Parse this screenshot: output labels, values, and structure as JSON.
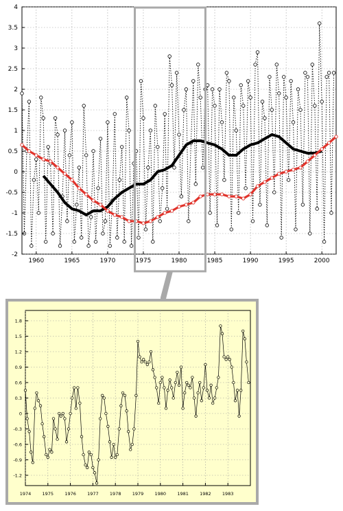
{
  "chart_data": [
    {
      "type": "line",
      "title": "",
      "xlabel": "",
      "ylabel": "",
      "xlim": [
        1958,
        2002
      ],
      "ylim": [
        -2,
        4
      ],
      "grid": true,
      "x_ticks": [
        "1960",
        "1965",
        "1970",
        "1975",
        "1980",
        "1985",
        "1990",
        "1995",
        "2000"
      ],
      "y_ticks": [
        "-2",
        "-1.5",
        "-1",
        "-0.5",
        "0",
        "0.5",
        "1",
        "1.5",
        "2",
        "2.5",
        "3",
        "3.5",
        "4"
      ],
      "series": [
        {
          "style": "dotted line with open circle markers",
          "color": "#000000",
          "x": [
            1958.0,
            1958.33,
            1958.67,
            1959.0,
            1959.33,
            1959.67,
            1960.0,
            1960.33,
            1960.67,
            1961.0,
            1961.33,
            1961.67,
            1962.0,
            1962.33,
            1962.67,
            1963.0,
            1963.33,
            1963.67,
            1964.0,
            1964.33,
            1964.67,
            1965.0,
            1965.33,
            1965.67,
            1966.0,
            1966.33,
            1966.67,
            1967.0,
            1967.33,
            1967.67,
            1968.0,
            1968.33,
            1968.67,
            1969.0,
            1969.33,
            1969.67,
            1970.0,
            1970.33,
            1970.67,
            1971.0,
            1971.33,
            1971.67,
            1972.0,
            1972.33,
            1972.67,
            1973.0,
            1973.33,
            1973.67,
            1974.0,
            1974.33,
            1974.67,
            1975.0,
            1975.33,
            1975.67,
            1976.0,
            1976.33,
            1976.67,
            1977.0,
            1977.33,
            1977.67,
            1978.0,
            1978.33,
            1978.67,
            1979.0,
            1979.33,
            1979.67,
            1980.0,
            1980.33,
            1980.67,
            1981.0,
            1981.33,
            1981.67,
            1982.0,
            1982.33,
            1982.67,
            1983.0,
            1983.33,
            1983.67,
            1984.0,
            1984.33,
            1984.67,
            1985.0,
            1985.33,
            1985.67,
            1986.0,
            1986.33,
            1986.67,
            1987.0,
            1987.33,
            1987.67,
            1988.0,
            1988.33,
            1988.67,
            1989.0,
            1989.33,
            1989.67,
            1990.0,
            1990.33,
            1990.67,
            1991.0,
            1991.33,
            1991.67,
            1992.0,
            1992.33,
            1992.67,
            1993.0,
            1993.33,
            1993.67,
            1994.0,
            1994.33,
            1994.67,
            1995.0,
            1995.33,
            1995.67,
            1996.0,
            1996.33,
            1996.67,
            1997.0,
            1997.33,
            1997.67,
            1998.0,
            1998.33,
            1998.67,
            1999.0,
            1999.33,
            1999.67,
            2000.0,
            2000.33,
            2000.67,
            2001.0,
            2001.33,
            2001.67
          ],
          "y": [
            1.9,
            -1.5,
            0.5,
            1.7,
            -1.8,
            -0.2,
            0.3,
            -1.0,
            1.8,
            1.3,
            -1.7,
            0.6,
            0.2,
            -1.5,
            1.3,
            0.9,
            -1.8,
            -0.6,
            1.0,
            -1.2,
            0.4,
            1.2,
            -1.7,
            -0.8,
            0.1,
            -1.6,
            1.6,
            0.4,
            -1.8,
            -1.1,
            0.5,
            -1.7,
            -0.4,
            0.8,
            -1.5,
            -1.2,
            1.2,
            -1.8,
            -0.7,
            1.4,
            -1.6,
            -0.2,
            0.6,
            -1.7,
            1.8,
            1.0,
            -1.8,
            0.2,
            0.5,
            -1.6,
            2.2,
            1.3,
            -1.4,
            0.1,
            1.0,
            -1.7,
            1.6,
            0.6,
            -1.2,
            -0.4,
            1.4,
            -0.9,
            2.8,
            2.1,
            0.1,
            2.4,
            0.9,
            -0.6,
            1.5,
            2.0,
            -1.2,
            0.7,
            2.2,
            -0.3,
            2.6,
            1.8,
            0.1,
            2.0,
            2.1,
            -1.0,
            2.0,
            1.6,
            -1.3,
            2.0,
            1.2,
            -0.2,
            2.4,
            2.2,
            -1.4,
            1.8,
            1.0,
            -1.0,
            2.1,
            1.6,
            -0.4,
            2.2,
            1.8,
            -1.2,
            2.6,
            2.9,
            -0.8,
            1.7,
            1.3,
            -1.3,
            2.3,
            1.5,
            -0.5,
            2.6,
            1.9,
            -1.6,
            2.3,
            1.8,
            -0.2,
            2.2,
            1.2,
            -1.4,
            2.0,
            1.5,
            -0.8,
            2.4,
            2.3,
            -1.5,
            2.6,
            1.6,
            -0.9,
            3.6,
            1.7,
            -1.7,
            2.3,
            2.4,
            -1.0,
            2.4
          ]
        },
        {
          "style": "thick solid line",
          "color": "#000000",
          "x": [
            1961.0,
            1962.0,
            1963.0,
            1964.0,
            1965.0,
            1966.0,
            1967.0,
            1968.0,
            1969.0,
            1970.0,
            1971.0,
            1972.0,
            1973.0,
            1974.0,
            1975.0,
            1976.0,
            1977.0,
            1978.0,
            1979.0,
            1980.0,
            1981.0,
            1982.0,
            1983.0,
            1984.0,
            1985.0,
            1986.0,
            1987.0,
            1988.0,
            1989.0,
            1990.0,
            1991.0,
            1992.0,
            1993.0,
            1994.0,
            1995.0,
            1996.0,
            1997.0,
            1998.0,
            1999.0,
            2000.0
          ],
          "y": [
            -0.1,
            -0.3,
            -0.5,
            -0.75,
            -0.9,
            -0.95,
            -1.05,
            -0.95,
            -0.95,
            -0.85,
            -0.65,
            -0.5,
            -0.4,
            -0.3,
            -0.3,
            -0.2,
            0.0,
            0.05,
            0.15,
            0.4,
            0.65,
            0.75,
            0.75,
            0.7,
            0.65,
            0.55,
            0.4,
            0.4,
            0.55,
            0.65,
            0.7,
            0.8,
            0.9,
            0.85,
            0.7,
            0.55,
            0.5,
            0.45,
            0.45,
            0.5
          ]
        },
        {
          "style": "thick red line with open circle markers",
          "color": "#e0332b",
          "x": [
            1958.0,
            1959.0,
            1960.0,
            1961.0,
            1962.0,
            1963.0,
            1964.0,
            1965.0,
            1966.0,
            1967.0,
            1968.0,
            1969.0,
            1970.0,
            1971.0,
            1972.0,
            1973.0,
            1974.0,
            1975.0,
            1976.0,
            1977.0,
            1978.0,
            1979.0,
            1980.0,
            1981.0,
            1982.0,
            1983.0,
            1984.0,
            1985.0,
            1986.0,
            1987.0,
            1988.0,
            1989.0,
            1990.0,
            1991.0,
            1992.0,
            1993.0,
            1994.0,
            1995.0,
            1996.0,
            1997.0,
            1998.0,
            1999.0,
            2000.0,
            2001.0,
            2002.0
          ],
          "y": [
            0.65,
            0.5,
            0.4,
            0.3,
            0.25,
            0.1,
            -0.05,
            -0.2,
            -0.4,
            -0.55,
            -0.7,
            -0.8,
            -0.95,
            -1.05,
            -1.1,
            -1.2,
            -1.2,
            -1.25,
            -1.2,
            -1.1,
            -1.0,
            -0.95,
            -0.85,
            -0.8,
            -0.75,
            -0.6,
            -0.55,
            -0.55,
            -0.55,
            -0.6,
            -0.6,
            -0.65,
            -0.55,
            -0.35,
            -0.25,
            -0.15,
            -0.05,
            0.0,
            0.05,
            0.1,
            0.25,
            0.4,
            0.55,
            0.7,
            0.85
          ]
        }
      ],
      "zoom_window": [
        1974,
        1983.5
      ]
    },
    {
      "type": "line",
      "title": "",
      "xlabel": "",
      "ylabel": "",
      "xlim": [
        1974,
        1984
      ],
      "ylim": [
        -1.4,
        2.0
      ],
      "grid": true,
      "x_ticks": [
        "1974",
        "1975",
        "1976",
        "1977",
        "1978",
        "1979",
        "1980",
        "1981",
        "1982",
        "1983"
      ],
      "y_ticks": [
        "-1.2",
        "-0.9",
        "-0.6",
        "-0.3",
        "0",
        "0.3",
        "0.6",
        "0.9",
        "1.2",
        "1.5",
        "1.8"
      ],
      "series": [
        {
          "style": "thin solid line with open circle markers",
          "color": "#000000",
          "x": [
            1974.0,
            1974.08,
            1974.17,
            1974.25,
            1974.33,
            1974.42,
            1974.5,
            1974.58,
            1974.67,
            1974.75,
            1974.83,
            1974.92,
            1975.0,
            1975.08,
            1975.17,
            1975.25,
            1975.33,
            1975.42,
            1975.5,
            1975.58,
            1975.67,
            1975.75,
            1975.83,
            1975.92,
            1976.0,
            1976.08,
            1976.17,
            1976.25,
            1976.33,
            1976.42,
            1976.5,
            1976.58,
            1976.67,
            1976.75,
            1976.83,
            1976.92,
            1977.0,
            1977.08,
            1977.17,
            1977.25,
            1977.33,
            1977.42,
            1977.5,
            1977.58,
            1977.67,
            1977.75,
            1977.83,
            1977.92,
            1978.0,
            1978.08,
            1978.17,
            1978.25,
            1978.33,
            1978.42,
            1978.5,
            1978.58,
            1978.67,
            1978.75,
            1978.83,
            1978.92,
            1979.0,
            1979.08,
            1979.17,
            1979.25,
            1979.33,
            1979.42,
            1979.5,
            1979.58,
            1979.67,
            1979.75,
            1979.83,
            1979.92,
            1980.0,
            1980.08,
            1980.17,
            1980.25,
            1980.33,
            1980.42,
            1980.5,
            1980.58,
            1980.67,
            1980.75,
            1980.83,
            1980.92,
            1981.0,
            1981.08,
            1981.17,
            1981.25,
            1981.33,
            1981.42,
            1981.5,
            1981.58,
            1981.67,
            1981.75,
            1981.83,
            1981.92,
            1982.0,
            1982.08,
            1982.17,
            1982.25,
            1982.33,
            1982.42,
            1982.5,
            1982.58,
            1982.67,
            1982.75,
            1982.83,
            1982.92,
            1983.0,
            1983.08,
            1983.17,
            1983.25,
            1983.33,
            1983.42,
            1983.5,
            1983.58,
            1983.67,
            1983.75,
            1983.83,
            1983.92
          ],
          "y": [
            0.45,
            -0.1,
            -0.35,
            -0.75,
            -0.95,
            0.1,
            0.4,
            0.25,
            0.15,
            -0.2,
            -0.45,
            -0.8,
            -0.85,
            -0.7,
            -0.75,
            -0.1,
            -0.3,
            -0.5,
            0.0,
            -0.05,
            0.0,
            -0.1,
            -0.55,
            -0.3,
            0.0,
            0.3,
            0.5,
            0.1,
            0.5,
            0.2,
            -0.45,
            -0.8,
            -1.0,
            -1.05,
            -0.75,
            -0.8,
            -1.05,
            -1.15,
            -1.35,
            -0.9,
            -0.1,
            0.35,
            0.3,
            0.0,
            -0.25,
            -0.55,
            -0.85,
            -0.6,
            -0.85,
            -0.8,
            -0.3,
            0.15,
            0.4,
            0.35,
            0.05,
            -0.35,
            -0.7,
            -0.6,
            -0.3,
            0.35,
            1.4,
            1.1,
            1.0,
            1.05,
            1.0,
            0.95,
            1.0,
            1.2,
            0.85,
            0.7,
            0.5,
            0.2,
            0.6,
            0.7,
            0.5,
            0.1,
            0.45,
            0.65,
            0.5,
            0.3,
            0.6,
            0.8,
            0.55,
            0.9,
            0.1,
            0.4,
            0.6,
            0.55,
            0.5,
            0.7,
            0.3,
            -0.05,
            0.4,
            0.6,
            0.25,
            0.5,
            0.95,
            0.45,
            0.3,
            0.55,
            0.2,
            0.3,
            0.5,
            0.7,
            1.7,
            1.55,
            1.1,
            1.05,
            1.1,
            1.05,
            0.9,
            0.6,
            0.25,
            0.45,
            -0.05,
            0.45,
            1.6,
            1.45,
            1.0,
            0.6
          ]
        }
      ]
    }
  ]
}
